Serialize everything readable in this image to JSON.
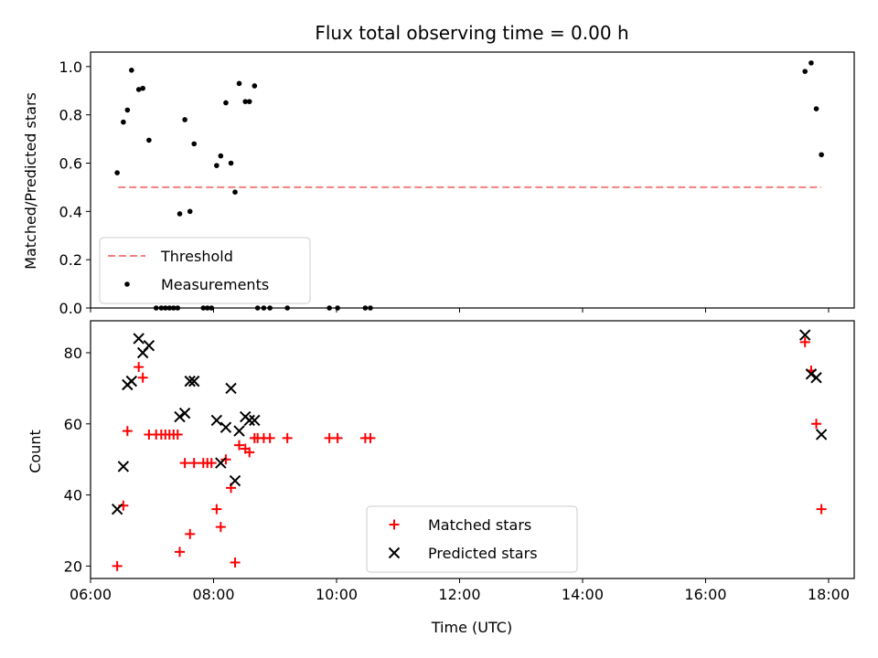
{
  "chart_data": [
    {
      "type": "scatter",
      "title": "Flux total observing time = 0.00 h",
      "xlabel": "",
      "ylabel": "Matched/Predicted stars",
      "xlim": [
        "06:00",
        "18:25"
      ],
      "ylim": [
        0,
        1.06
      ],
      "yticks": [
        0.0,
        0.2,
        0.4,
        0.6,
        0.8,
        1.0
      ],
      "legend_position": "lower-left",
      "series": [
        {
          "name": "Threshold",
          "kind": "dashed-line",
          "color": "#f08080",
          "x": [
            "06:27",
            "17:53"
          ],
          "y": [
            0.5,
            0.5
          ]
        },
        {
          "name": "Measurements",
          "kind": "points",
          "color": "#000000",
          "x": [
            "06:26",
            "06:32",
            "06:36",
            "06:40",
            "06:47",
            "06:51",
            "06:57",
            "07:04",
            "07:09",
            "07:13",
            "07:17",
            "07:21",
            "07:25",
            "07:27",
            "07:32",
            "07:37",
            "07:41",
            "07:50",
            "07:54",
            "07:58",
            "08:03",
            "08:07",
            "08:12",
            "08:17",
            "08:21",
            "08:25",
            "08:31",
            "08:35",
            "08:40",
            "08:43",
            "08:49",
            "08:55",
            "09:12",
            "09:53",
            "10:01",
            "10:28",
            "10:33",
            "17:37",
            "17:43",
            "17:48",
            "17:53"
          ],
          "y": [
            0.56,
            0.77,
            0.82,
            0.985,
            0.905,
            0.91,
            0.695,
            0.0,
            0.0,
            0.0,
            0.0,
            0.0,
            0.0,
            0.39,
            0.78,
            0.4,
            0.68,
            0.0,
            0.0,
            0.0,
            0.59,
            0.63,
            0.85,
            0.6,
            0.48,
            0.93,
            0.855,
            0.855,
            0.92,
            0.0,
            0.0,
            0.0,
            0.0,
            0.0,
            0.0,
            0.0,
            0.0,
            0.98,
            1.015,
            0.825,
            0.635
          ]
        }
      ]
    },
    {
      "type": "scatter",
      "title": "",
      "xlabel": "Time (UTC)",
      "ylabel": "Count",
      "xlim": [
        "06:00",
        "18:25"
      ],
      "ylim": [
        16.5,
        89
      ],
      "yticks": [
        20,
        40,
        60,
        80
      ],
      "xticks": [
        "06:00",
        "08:00",
        "10:00",
        "12:00",
        "14:00",
        "16:00",
        "18:00"
      ],
      "legend_position": "lower-center",
      "series": [
        {
          "name": "Matched stars",
          "marker": "plus",
          "color": "#ff0000",
          "x": [
            "06:26",
            "06:32",
            "06:36",
            "06:47",
            "06:51",
            "06:57",
            "07:04",
            "07:09",
            "07:13",
            "07:17",
            "07:21",
            "07:25",
            "07:27",
            "07:32",
            "07:37",
            "07:41",
            "07:50",
            "07:54",
            "07:58",
            "08:03",
            "08:07",
            "08:12",
            "08:17",
            "08:21",
            "08:25",
            "08:31",
            "08:35",
            "08:40",
            "08:43",
            "08:49",
            "08:55",
            "09:12",
            "09:53",
            "10:01",
            "10:28",
            "10:33",
            "17:37",
            "17:43",
            "17:48",
            "17:53"
          ],
          "y": [
            20,
            37,
            58,
            76,
            73,
            57,
            57,
            57,
            57,
            57,
            57,
            57,
            24,
            49,
            29,
            49,
            49,
            49,
            49,
            36,
            31,
            50,
            42,
            21,
            54,
            53,
            52,
            56,
            56,
            56,
            56,
            56,
            56,
            56,
            56,
            56,
            83,
            75,
            60,
            36
          ]
        },
        {
          "name": "Predicted stars",
          "marker": "x",
          "color": "#000000",
          "x": [
            "06:26",
            "06:32",
            "06:36",
            "06:40",
            "06:47",
            "06:51",
            "06:57",
            "07:27",
            "07:32",
            "07:37",
            "07:41",
            "08:03",
            "08:07",
            "08:12",
            "08:17",
            "08:21",
            "08:25",
            "08:31",
            "08:35",
            "08:40",
            "17:37",
            "17:43",
            "17:48",
            "17:53"
          ],
          "y": [
            36,
            48,
            71,
            72,
            84,
            80,
            82,
            62,
            63,
            72,
            72,
            61,
            49,
            59,
            70,
            44,
            58,
            62,
            61,
            61,
            85,
            74,
            73,
            57
          ]
        }
      ]
    }
  ]
}
